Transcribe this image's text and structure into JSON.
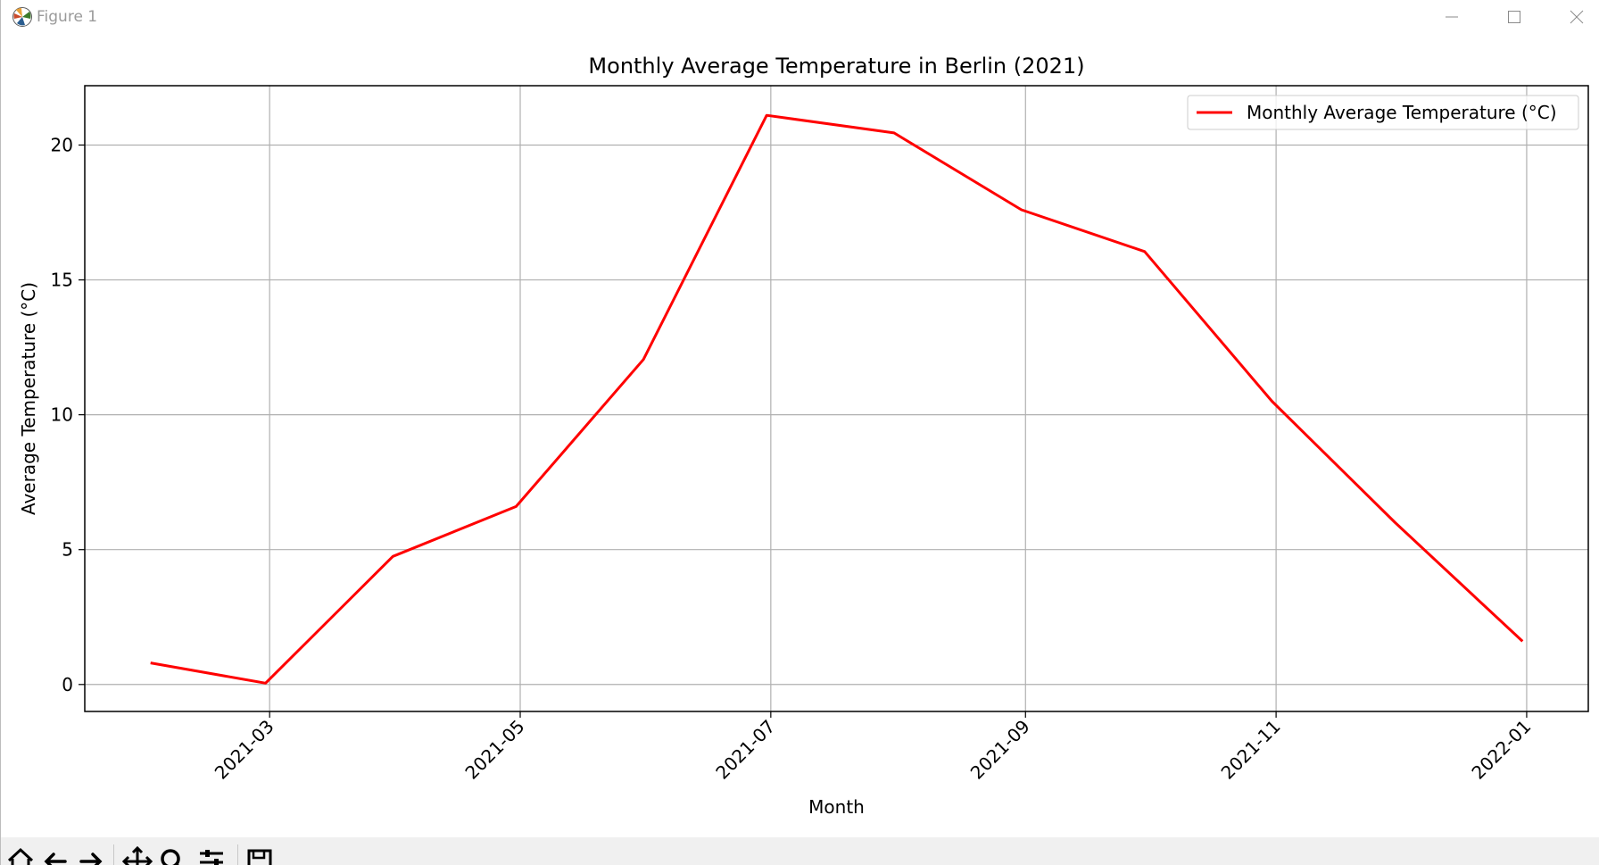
{
  "window": {
    "title": "Figure 1",
    "icons": {
      "app": "matplotlib-icon",
      "minimize": "minimize-icon",
      "maximize": "maximize-icon",
      "close": "close-icon"
    }
  },
  "toolbar": {
    "buttons": [
      {
        "name": "home-icon"
      },
      {
        "name": "back-arrow-icon"
      },
      {
        "name": "forward-arrow-icon"
      },
      {
        "name": "pan-move-icon"
      },
      {
        "name": "zoom-magnifier-icon"
      },
      {
        "name": "configure-subplots-icon"
      },
      {
        "name": "save-floppy-icon"
      }
    ]
  },
  "chart_data": {
    "type": "line",
    "title": "Monthly Average Temperature in Berlin (2021)",
    "xlabel": "Month",
    "ylabel": "Average Temperature (°C)",
    "x": [
      "2021-01-31",
      "2021-02-28",
      "2021-03-31",
      "2021-04-30",
      "2021-05-31",
      "2021-06-30",
      "2021-07-31",
      "2021-08-31",
      "2021-09-30",
      "2021-10-31",
      "2021-11-30",
      "2021-12-31"
    ],
    "series": [
      {
        "name": "Monthly Average Temperature (°C)",
        "color": "#ff0000",
        "values": [
          0.8,
          0.05,
          4.75,
          6.6,
          12.05,
          21.1,
          20.45,
          17.6,
          16.05,
          10.5,
          6.0,
          1.6
        ]
      }
    ],
    "xticks": [
      {
        "date": "2021-03-01",
        "label": "2021-03"
      },
      {
        "date": "2021-05-01",
        "label": "2021-05"
      },
      {
        "date": "2021-07-01",
        "label": "2021-07"
      },
      {
        "date": "2021-09-01",
        "label": "2021-09"
      },
      {
        "date": "2021-11-01",
        "label": "2021-11"
      },
      {
        "date": "2022-01-01",
        "label": "2022-01"
      }
    ],
    "yticks": [
      0,
      5,
      10,
      15,
      20
    ],
    "xlim": [
      "2021-01-15",
      "2022-01-16"
    ],
    "ylim": [
      -1.0,
      22.2
    ],
    "grid": true,
    "legend": "top-right"
  }
}
